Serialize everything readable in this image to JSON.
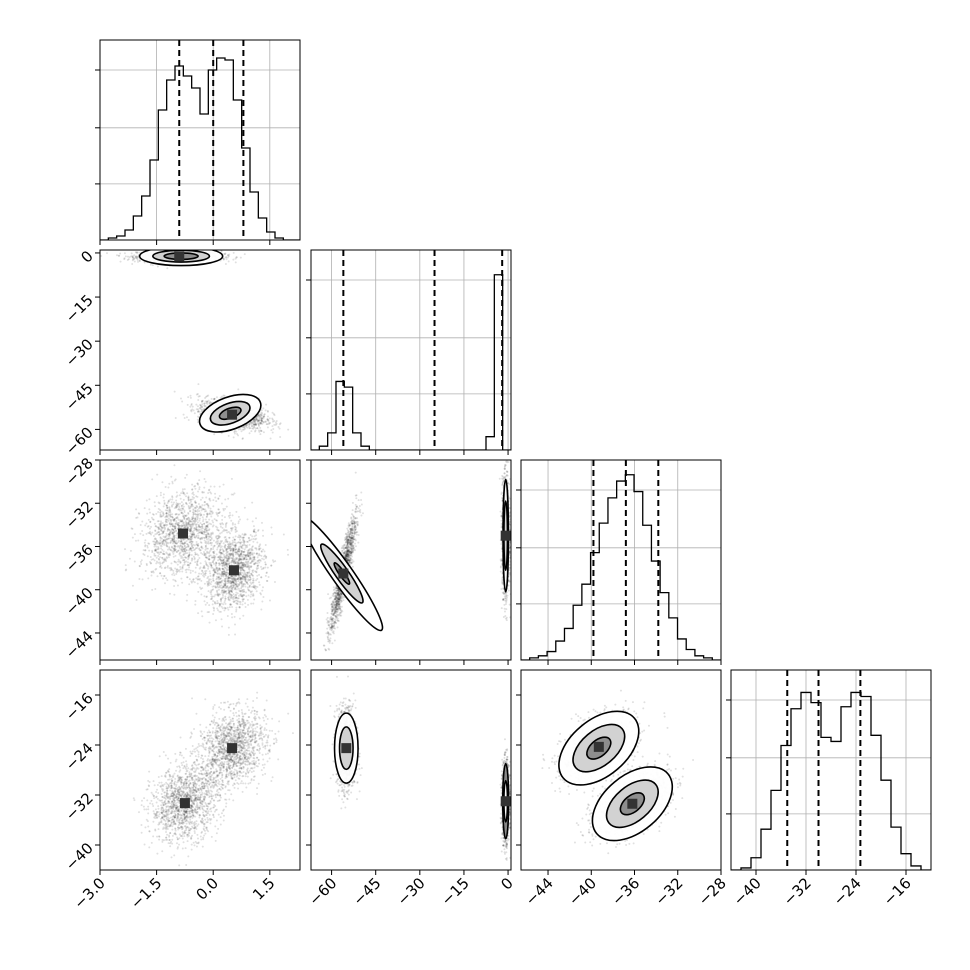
{
  "chart_data": {
    "type": "corner",
    "parameters": 4,
    "axis_ticks": [
      {
        "ticks": [
          -3.0,
          -1.5,
          0.0,
          1.5
        ],
        "labels": [
          "−3.0",
          "−1.5",
          "0.0",
          "1.5"
        ],
        "range": [
          -3.0,
          2.3
        ]
      },
      {
        "ticks": [
          -60,
          -45,
          -30,
          -15,
          0
        ],
        "labels": [
          "−60",
          "−45",
          "−30",
          "−15",
          "0"
        ],
        "range": [
          -67,
          1
        ]
      },
      {
        "ticks": [
          -44,
          -40,
          -36,
          -32,
          -28
        ],
        "labels": [
          "−44",
          "−40",
          "−36",
          "−32",
          "−28"
        ],
        "range": [
          -46.5,
          -28
        ]
      },
      {
        "ticks": [
          -40,
          -32,
          -24,
          -16
        ],
        "labels": [
          "−40",
          "−32",
          "−24",
          "−16"
        ],
        "range": [
          -44,
          -12
        ]
      }
    ],
    "marginals": [
      {
        "quantiles": [
          -0.9,
          0.0,
          0.8
        ],
        "counts": [
          0,
          0.01,
          0.02,
          0.05,
          0.12,
          0.22,
          0.4,
          0.65,
          0.8,
          0.87,
          0.82,
          0.76,
          0.63,
          0.85,
          0.91,
          0.9,
          0.7,
          0.46,
          0.24,
          0.11,
          0.04,
          0.01,
          0,
          0
        ],
        "ymax": 1.0
      },
      {
        "quantiles": [
          -56,
          -25,
          -2
        ],
        "counts": [
          0,
          0.02,
          0.09,
          0.36,
          0.33,
          0.09,
          0.02,
          0,
          0,
          0,
          0,
          0,
          0,
          0,
          0,
          0,
          0,
          0,
          0,
          0,
          0,
          0.07,
          0.92,
          0
        ],
        "ymax": 1.05
      },
      {
        "quantiles": [
          -39.8,
          -36.8,
          -33.8
        ],
        "counts": [
          0,
          0.01,
          0.02,
          0.04,
          0.09,
          0.15,
          0.26,
          0.36,
          0.51,
          0.65,
          0.77,
          0.85,
          0.88,
          0.8,
          0.64,
          0.47,
          0.32,
          0.2,
          0.1,
          0.05,
          0.02,
          0.01,
          0
        ],
        "ymax": 0.95
      },
      {
        "quantiles": [
          -35,
          -30,
          -23.3
        ],
        "counts": [
          0,
          0.01,
          0.06,
          0.2,
          0.39,
          0.61,
          0.79,
          0.87,
          0.82,
          0.65,
          0.63,
          0.8,
          0.87,
          0.85,
          0.66,
          0.44,
          0.21,
          0.08,
          0.02,
          0
        ],
        "ymax": 0.98
      }
    ]
  }
}
